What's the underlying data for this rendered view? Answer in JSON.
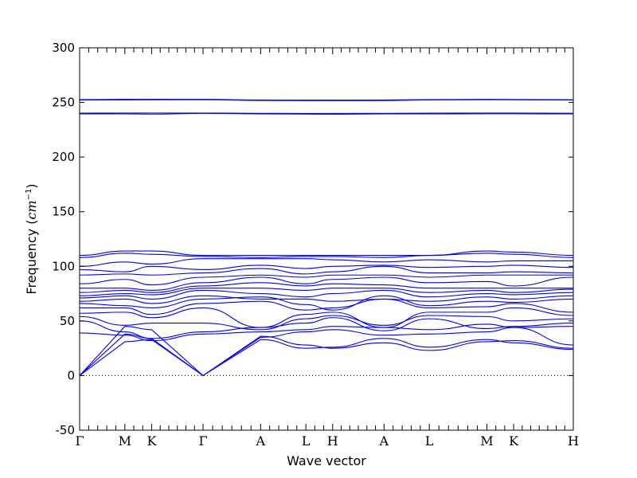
{
  "chart_data": {
    "type": "line",
    "title": "",
    "xlabel": "Wave vector",
    "ylabel_prefix": "Frequency (",
    "ylabel_unit_base": "cm",
    "ylabel_unit_exp": "−1",
    "ylabel_suffix": ")",
    "ylim": [
      -50,
      300
    ],
    "yticks": [
      -50,
      0,
      50,
      100,
      150,
      200,
      250,
      300
    ],
    "xlim": [
      0,
      12
    ],
    "grid": false,
    "kpoints": [
      {
        "label": "Γ",
        "x": 0
      },
      {
        "label": "M",
        "x": 1.1
      },
      {
        "label": "K",
        "x": 1.75
      },
      {
        "label": "Γ",
        "x": 3.0
      },
      {
        "label": "A",
        "x": 4.4
      },
      {
        "label": "L",
        "x": 5.5
      },
      {
        "label": "H",
        "x": 6.15
      },
      {
        "label": "A",
        "x": 7.4
      },
      {
        "label": "L",
        "x": 8.5
      },
      {
        "label": "M",
        "x": 9.9
      },
      {
        "label": "K",
        "x": 10.55
      },
      {
        "label": "H",
        "x": 12.0
      }
    ],
    "series_color": "#0000ff",
    "zero_line_color": "#000000",
    "series": [
      {
        "x": [
          0,
          1.1,
          1.75,
          3.0,
          4.4,
          5.5,
          6.15,
          7.4,
          8.5,
          9.9,
          10.55,
          12.0
        ],
        "values": [
          0,
          45,
          42,
          0,
          33,
          25,
          26,
          34,
          26,
          33,
          30,
          24
        ]
      },
      {
        "x": [
          0,
          1.1,
          1.75,
          3.0,
          4.4,
          5.5,
          6.15,
          7.4,
          8.5,
          9.9,
          10.55,
          12.0
        ],
        "values": [
          0,
          38,
          34,
          0,
          36,
          28,
          25,
          30,
          23,
          31,
          32,
          25
        ]
      },
      {
        "x": [
          0,
          1.1,
          1.75,
          3.0,
          4.4,
          5.5,
          6.15,
          7.4,
          8.5,
          9.9,
          10.55,
          12.0
        ],
        "values": [
          0,
          31,
          33,
          0,
          35,
          40,
          42,
          37,
          38,
          40,
          44,
          28
        ]
      },
      {
        "x": [
          0,
          1.1,
          1.75,
          3.0,
          4.4,
          5.5,
          6.15,
          7.4,
          8.5,
          9.9,
          10.55,
          12.0
        ],
        "values": [
          39,
          37,
          32,
          38,
          40,
          42,
          45,
          44,
          42,
          47,
          44,
          45
        ]
      },
      {
        "x": [
          0,
          1.1,
          1.75,
          3.0,
          4.4,
          5.5,
          6.15,
          7.4,
          8.5,
          9.9,
          10.55,
          12.0
        ],
        "values": [
          50,
          40,
          34,
          40,
          44,
          48,
          53,
          41,
          52,
          43,
          45,
          48
        ]
      },
      {
        "x": [
          0,
          1.1,
          1.75,
          3.0,
          4.4,
          5.5,
          6.15,
          7.4,
          8.5,
          9.9,
          10.55,
          12.0
        ],
        "values": [
          54,
          46,
          48,
          48,
          42,
          52,
          55,
          46,
          55,
          54,
          50,
          52
        ]
      },
      {
        "x": [
          0,
          1.1,
          1.75,
          3.0,
          4.4,
          5.5,
          6.15,
          7.4,
          8.5,
          9.9,
          10.55,
          12.0
        ],
        "values": [
          57,
          58,
          53,
          62,
          44,
          56,
          58,
          44,
          58,
          58,
          62,
          55
        ]
      },
      {
        "x": [
          0,
          1.1,
          1.75,
          3.0,
          4.4,
          5.5,
          6.15,
          7.4,
          8.5,
          9.9,
          10.55,
          12.0
        ],
        "values": [
          62,
          62,
          56,
          66,
          68,
          60,
          62,
          70,
          62,
          63,
          66,
          58
        ]
      },
      {
        "x": [
          0,
          1.1,
          1.75,
          3.0,
          4.4,
          5.5,
          6.15,
          7.4,
          8.5,
          9.9,
          10.55,
          12.0
        ],
        "values": [
          66,
          64,
          62,
          70,
          72,
          65,
          60,
          73,
          64,
          68,
          67,
          70
        ]
      },
      {
        "x": [
          0,
          1.1,
          1.75,
          3.0,
          4.4,
          5.5,
          6.15,
          7.4,
          8.5,
          9.9,
          10.55,
          12.0
        ],
        "values": [
          68,
          70,
          66,
          73,
          70,
          70,
          68,
          70,
          68,
          72,
          70,
          73
        ]
      },
      {
        "x": [
          0,
          1.1,
          1.75,
          3.0,
          4.4,
          5.5,
          6.15,
          7.4,
          8.5,
          9.9,
          10.55,
          12.0
        ],
        "values": [
          71,
          73,
          70,
          78,
          75,
          72,
          75,
          78,
          72,
          75,
          74,
          76
        ]
      },
      {
        "x": [
          0,
          1.1,
          1.75,
          3.0,
          4.4,
          5.5,
          6.15,
          7.4,
          8.5,
          9.9,
          10.55,
          12.0
        ],
        "values": [
          73,
          75,
          74,
          80,
          80,
          78,
          80,
          80,
          76,
          78,
          76,
          79
        ]
      },
      {
        "x": [
          0,
          1.1,
          1.75,
          3.0,
          4.4,
          5.5,
          6.15,
          7.4,
          8.5,
          9.9,
          10.55,
          12.0
        ],
        "values": [
          76,
          78,
          76,
          82,
          85,
          82,
          84,
          83,
          80,
          80,
          80,
          80
        ]
      },
      {
        "x": [
          0,
          1.1,
          1.75,
          3.0,
          4.4,
          5.5,
          6.15,
          7.4,
          8.5,
          9.9,
          10.55,
          12.0
        ],
        "values": [
          80,
          80,
          78,
          85,
          90,
          84,
          88,
          90,
          85,
          86,
          82,
          90
        ]
      },
      {
        "x": [
          0,
          1.1,
          1.75,
          3.0,
          4.4,
          5.5,
          6.15,
          7.4,
          8.5,
          9.9,
          10.55,
          12.0
        ],
        "values": [
          84,
          88,
          83,
          90,
          92,
          90,
          92,
          92,
          90,
          92,
          92,
          92
        ]
      },
      {
        "x": [
          0,
          1.1,
          1.75,
          3.0,
          4.4,
          5.5,
          6.15,
          7.4,
          8.5,
          9.9,
          10.55,
          12.0
        ],
        "values": [
          92,
          93,
          92,
          94,
          98,
          93,
          95,
          100,
          94,
          94,
          95,
          94
        ]
      },
      {
        "x": [
          0,
          1.1,
          1.75,
          3.0,
          4.4,
          5.5,
          6.15,
          7.4,
          8.5,
          9.9,
          10.55,
          12.0
        ],
        "values": [
          97,
          95,
          100,
          97,
          101,
          98,
          100,
          101,
          99,
          100,
          101,
          99
        ]
      },
      {
        "x": [
          0,
          1.1,
          1.75,
          3.0,
          4.4,
          5.5,
          6.15,
          7.4,
          8.5,
          9.9,
          10.55,
          12.0
        ],
        "values": [
          100,
          104,
          102,
          107,
          107,
          107,
          106,
          104,
          106,
          104,
          105,
          105
        ]
      },
      {
        "x": [
          0,
          1.1,
          1.75,
          3.0,
          4.4,
          5.5,
          6.15,
          7.4,
          8.5,
          9.9,
          10.55,
          12.0
        ],
        "values": [
          108,
          112,
          111,
          109,
          108,
          109,
          109,
          108,
          110,
          112,
          111,
          108
        ]
      },
      {
        "x": [
          0,
          1.1,
          1.75,
          3.0,
          4.4,
          5.5,
          6.15,
          7.4,
          8.5,
          9.9,
          10.55,
          12.0
        ],
        "values": [
          110,
          114,
          114,
          110,
          110,
          110,
          110,
          110,
          110,
          114,
          113,
          110
        ]
      },
      {
        "x": [
          0,
          1.1,
          1.75,
          3.0,
          4.4,
          5.5,
          6.15,
          7.4,
          8.5,
          9.9,
          10.55,
          12.0
        ],
        "values": [
          239.5,
          239.5,
          239.3,
          240,
          239.5,
          239.3,
          239.2,
          239.5,
          239.5,
          239.6,
          239.6,
          239.5
        ]
      },
      {
        "x": [
          0,
          1.1,
          1.75,
          3.0,
          4.4,
          5.5,
          6.15,
          7.4,
          8.5,
          9.9,
          10.55,
          12.0
        ],
        "values": [
          240.2,
          240.3,
          240.3,
          240.3,
          240,
          239.9,
          239.9,
          240,
          240.2,
          240.3,
          240.3,
          240.1
        ]
      },
      {
        "x": [
          0,
          1.1,
          1.75,
          3.0,
          4.4,
          5.5,
          6.15,
          7.4,
          8.5,
          9.9,
          10.55,
          12.0
        ],
        "values": [
          252.2,
          252.3,
          252.4,
          252.5,
          251.8,
          251.6,
          251.6,
          251.7,
          252.3,
          252.5,
          252.4,
          252.2
        ]
      },
      {
        "x": [
          0,
          1.1,
          1.75,
          3.0,
          4.4,
          5.5,
          6.15,
          7.4,
          8.5,
          9.9,
          10.55,
          12.0
        ],
        "values": [
          252.6,
          252.8,
          252.8,
          252.8,
          252.2,
          252.1,
          252.1,
          252.2,
          252.6,
          252.8,
          252.7,
          252.5
        ]
      }
    ]
  }
}
